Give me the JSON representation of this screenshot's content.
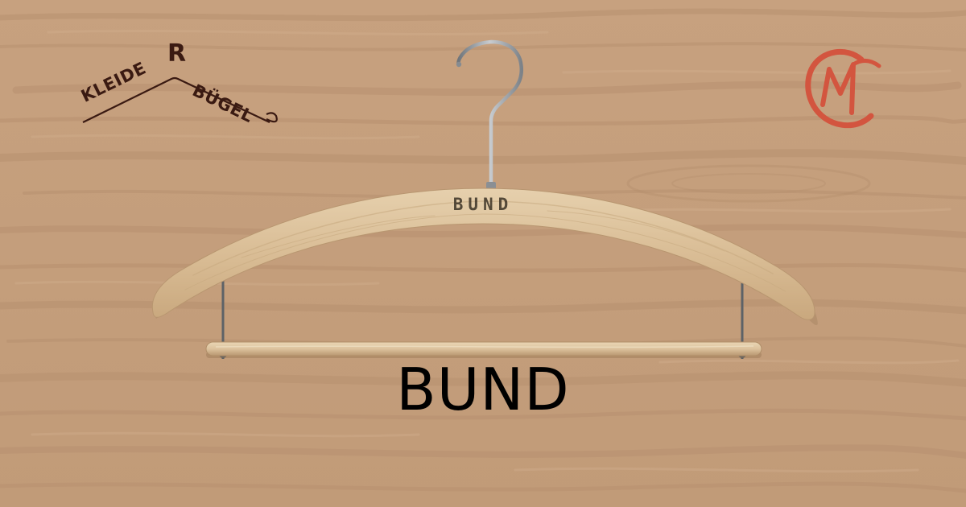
{
  "brand": {
    "word_left": "KLEIDE",
    "word_right": "BÜGEL",
    "initial": "R",
    "color": "#3a1a12"
  },
  "monogram": {
    "letter": "M",
    "color": "#d3553f"
  },
  "hanger": {
    "engraving": "BUND",
    "wood_color": "#dcc29d",
    "hook_color": "#9aa0a6"
  },
  "product": {
    "title": "BUND"
  },
  "background": {
    "color": "#c49e7b",
    "grain_color": "#b58f6c"
  }
}
